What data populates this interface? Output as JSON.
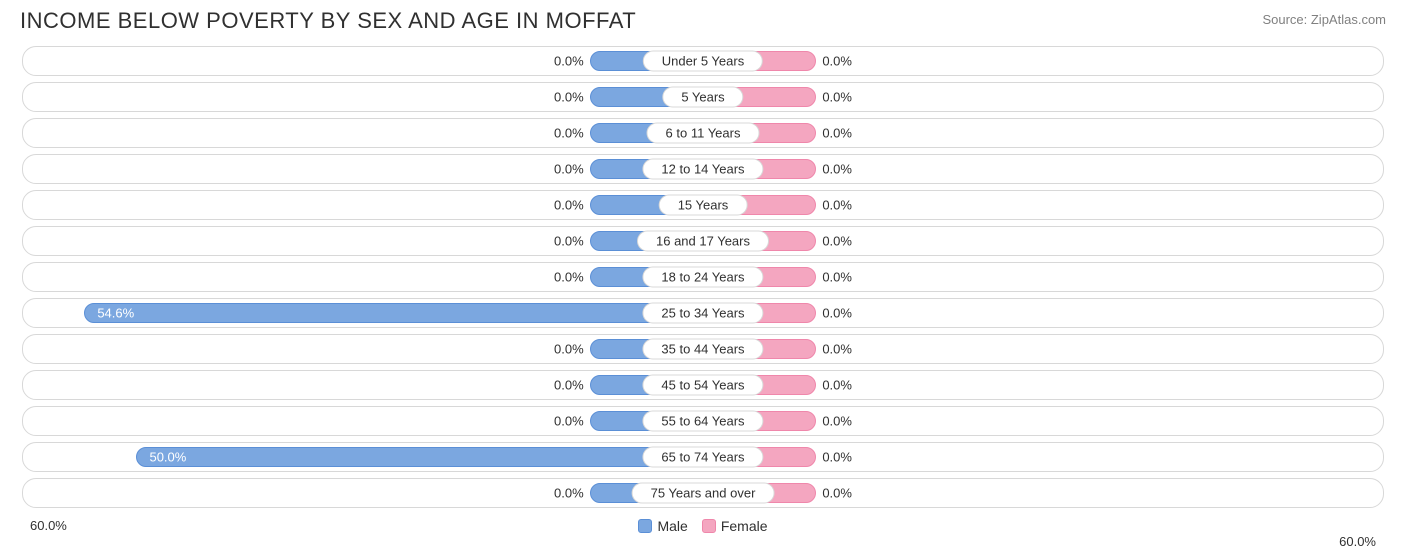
{
  "title": "INCOME BELOW POVERTY BY SEX AND AGE IN MOFFAT",
  "source": "Source: ZipAtlas.com",
  "axis_max_pct": 60.0,
  "axis_left_label": "60.0%",
  "axis_right_label": "60.0%",
  "min_bar_pct": 10.0,
  "male_color": "#7ba7e0",
  "male_border": "#5b8fd6",
  "female_color": "#f4a6c0",
  "female_border": "#ef87ab",
  "row_border_color": "#d8d8d8",
  "background_color": "#ffffff",
  "title_color": "#303030",
  "source_color": "#808080",
  "label_text_color": "#303030",
  "inside_text_color": "#ffffff",
  "title_fontsize": 22,
  "label_fontsize": 13,
  "legend": {
    "male": "Male",
    "female": "Female"
  },
  "rows": [
    {
      "category": "Under 5 Years",
      "male": 0.0,
      "female": 0.0
    },
    {
      "category": "5 Years",
      "male": 0.0,
      "female": 0.0
    },
    {
      "category": "6 to 11 Years",
      "male": 0.0,
      "female": 0.0
    },
    {
      "category": "12 to 14 Years",
      "male": 0.0,
      "female": 0.0
    },
    {
      "category": "15 Years",
      "male": 0.0,
      "female": 0.0
    },
    {
      "category": "16 and 17 Years",
      "male": 0.0,
      "female": 0.0
    },
    {
      "category": "18 to 24 Years",
      "male": 0.0,
      "female": 0.0
    },
    {
      "category": "25 to 34 Years",
      "male": 54.6,
      "female": 0.0
    },
    {
      "category": "35 to 44 Years",
      "male": 0.0,
      "female": 0.0
    },
    {
      "category": "45 to 54 Years",
      "male": 0.0,
      "female": 0.0
    },
    {
      "category": "55 to 64 Years",
      "male": 0.0,
      "female": 0.0
    },
    {
      "category": "65 to 74 Years",
      "male": 50.0,
      "female": 0.0
    },
    {
      "category": "75 Years and over",
      "male": 0.0,
      "female": 0.0
    }
  ]
}
